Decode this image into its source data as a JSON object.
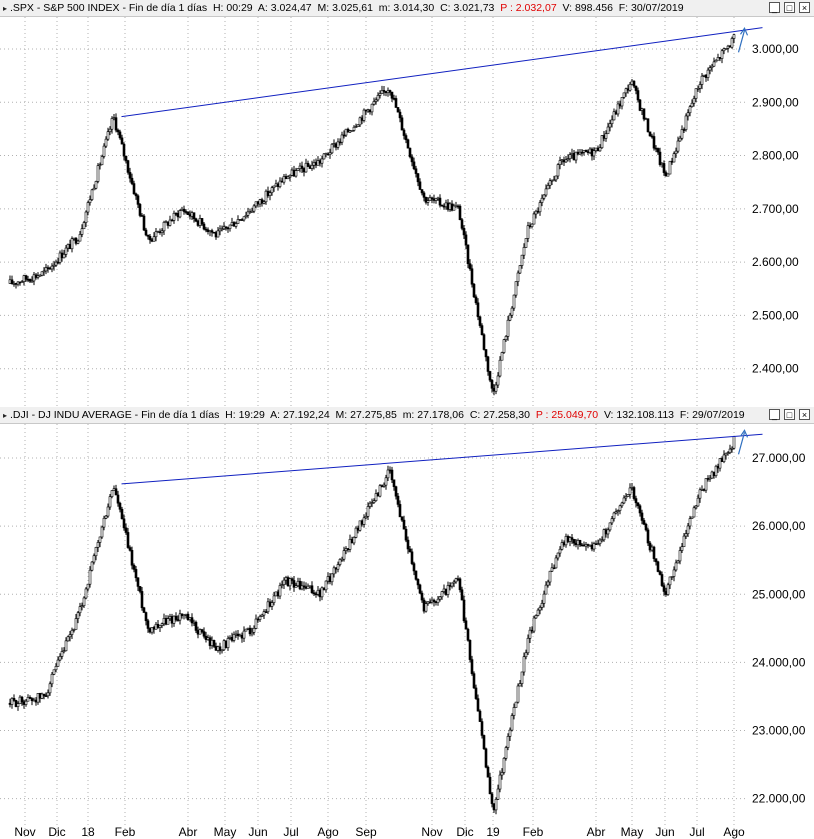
{
  "panels": [
    {
      "header": {
        "symbol": ".SPX",
        "name": "S&P 500 INDEX",
        "timeframe": "Fin de día 1 días",
        "h": "H: 00:29",
        "a": "A: 3.024,47",
        "m": "M: 3.025,61",
        "mi": "m: 3.014,30",
        "c": "C: 3.021,73",
        "p": "P : 2.032,07",
        "v": "V: 898.456",
        "f": "F: 30/07/2019"
      },
      "y_ticks": [
        "3.000,00",
        "2.900,00",
        "2.800,00",
        "2.700,00",
        "2.600,00",
        "2.500,00",
        "2.400,00"
      ]
    },
    {
      "header": {
        "symbol": ".DJI",
        "name": "DJ INDU AVERAGE",
        "timeframe": "Fin de día 1 días",
        "h": "H: 19:29",
        "a": "A: 27.192,24",
        "m": "M: 27.275,85",
        "mi": "m: 27.178,06",
        "c": "C: 27.258,30",
        "p": "P : 25.049,70",
        "v": "V: 132.108.113",
        "f": "F: 29/07/2019"
      },
      "y_ticks": [
        "27.000,00",
        "26.000,00",
        "25.000,00",
        "24.000,00",
        "23.000,00",
        "22.000,00"
      ]
    }
  ],
  "x_ticks": [
    "Nov",
    "Dic",
    "18",
    "Feb",
    "Abr",
    "May",
    "Jun",
    "Jul",
    "Ago",
    "Sep",
    "Nov",
    "Dic",
    "19",
    "Feb",
    "Abr",
    "May",
    "Jun",
    "Jul",
    "Ago"
  ],
  "colors": {
    "candle": "#000000",
    "trendline": "#1020c0",
    "arrow": "#3070c0",
    "grid": "#b0b0b0",
    "price_label": "#e00000"
  },
  "chart_data": [
    {
      "type": "line",
      "title": ".SPX - S&P 500 INDEX",
      "series": [
        {
          "x": [
            "2017-10",
            "2017-11",
            "2017-12",
            "2018-01",
            "2018-02",
            "2018-03",
            "2018-04",
            "2018-05",
            "2018-06",
            "2018-07",
            "2018-08",
            "2018-09",
            "2018-10",
            "2018-11",
            "2018-12",
            "2019-01",
            "2019-02",
            "2019-03",
            "2019-04",
            "2019-05",
            "2019-06",
            "2019-07"
          ],
          "values": [
            2560,
            2580,
            2650,
            2873,
            2640,
            2700,
            2650,
            2700,
            2760,
            2790,
            2860,
            2930,
            2720,
            2700,
            2350,
            2660,
            2790,
            2810,
            2940,
            2760,
            2940,
            3020
          ]
        }
      ],
      "trendline": {
        "from": [
          "2018-01",
          2873
        ],
        "to": [
          "2019-07",
          3040
        ]
      },
      "ylim": [
        2330,
        3060
      ],
      "grid": true
    },
    {
      "type": "line",
      "title": ".DJI - DJ INDU AVERAGE",
      "series": [
        {
          "x": [
            "2017-10",
            "2017-11",
            "2017-12",
            "2018-01",
            "2018-02",
            "2018-03",
            "2018-04",
            "2018-05",
            "2018-06",
            "2018-07",
            "2018-08",
            "2018-09",
            "2018-10",
            "2018-11",
            "2018-12",
            "2019-01",
            "2019-02",
            "2019-03",
            "2019-04",
            "2019-05",
            "2019-06",
            "2019-07"
          ],
          "values": [
            23400,
            23500,
            24700,
            26600,
            24500,
            24700,
            24200,
            24500,
            25200,
            25000,
            25900,
            26800,
            24800,
            25200,
            21800,
            24300,
            25800,
            25700,
            26600,
            25000,
            26500,
            27260
          ]
        }
      ],
      "trendline": {
        "from": [
          "2018-01",
          26620
        ],
        "to": [
          "2019-07",
          27350
        ]
      },
      "ylim": [
        21700,
        27500
      ],
      "grid": true
    }
  ]
}
